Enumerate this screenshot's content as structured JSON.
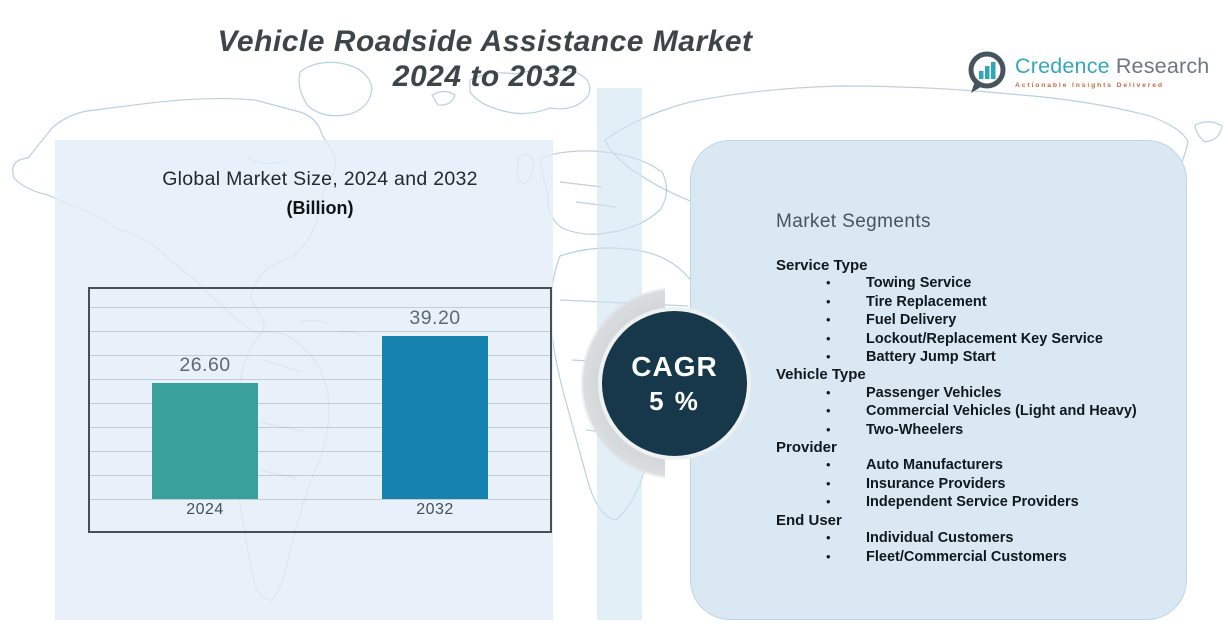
{
  "header": {
    "title_line1": "Vehicle Roadside Assistance Market",
    "title_line2": "2024 to 2032"
  },
  "logo": {
    "brand_first": "Credence",
    "brand_second": "Research",
    "tagline": "Actionable Insights Delivered",
    "icon": "bar-chart-speech-bubble"
  },
  "chart_data": {
    "type": "bar",
    "title": "Global Market Size, 2024 and 2032",
    "subtitle": "(Billion)",
    "categories": [
      "2024",
      "2032"
    ],
    "values": [
      26.6,
      39.2
    ],
    "value_labels": [
      "26.60",
      "39.20"
    ],
    "bar_colors": [
      "#3aa09b",
      "#1583ad"
    ],
    "ylim": [
      0,
      44
    ],
    "grid": true,
    "legend": false
  },
  "cagr": {
    "label": "CAGR",
    "value": "5 %"
  },
  "segments": {
    "heading": "Market Segments",
    "groups": [
      {
        "name": "Service Type",
        "items": [
          "Towing Service",
          "Tire Replacement",
          "Fuel Delivery",
          "Lockout/Replacement Key Service",
          "Battery Jump Start"
        ]
      },
      {
        "name": "Vehicle Type",
        "items": [
          "Passenger Vehicles",
          "Commercial Vehicles (Light and Heavy)",
          "Two-Wheelers"
        ]
      },
      {
        "name": "Provider",
        "items": [
          "Auto Manufacturers",
          "Insurance Providers",
          "Independent Service Providers"
        ]
      },
      {
        "name": "End User",
        "items": [
          "Individual Customers",
          "Fleet/Commercial Customers"
        ]
      }
    ]
  },
  "colors": {
    "bar_2024": "#3aa09b",
    "bar_2032": "#1583ad",
    "cagr_circle": "#16384a",
    "right_panel": "#d9e8f3",
    "left_panel": "#e6eef7",
    "map_line": "#a9cde0",
    "brand_teal": "#35a8bc",
    "brand_gray": "#6d777c",
    "tagline_orange": "#c96a3e",
    "title_gray": "#3e4548"
  }
}
